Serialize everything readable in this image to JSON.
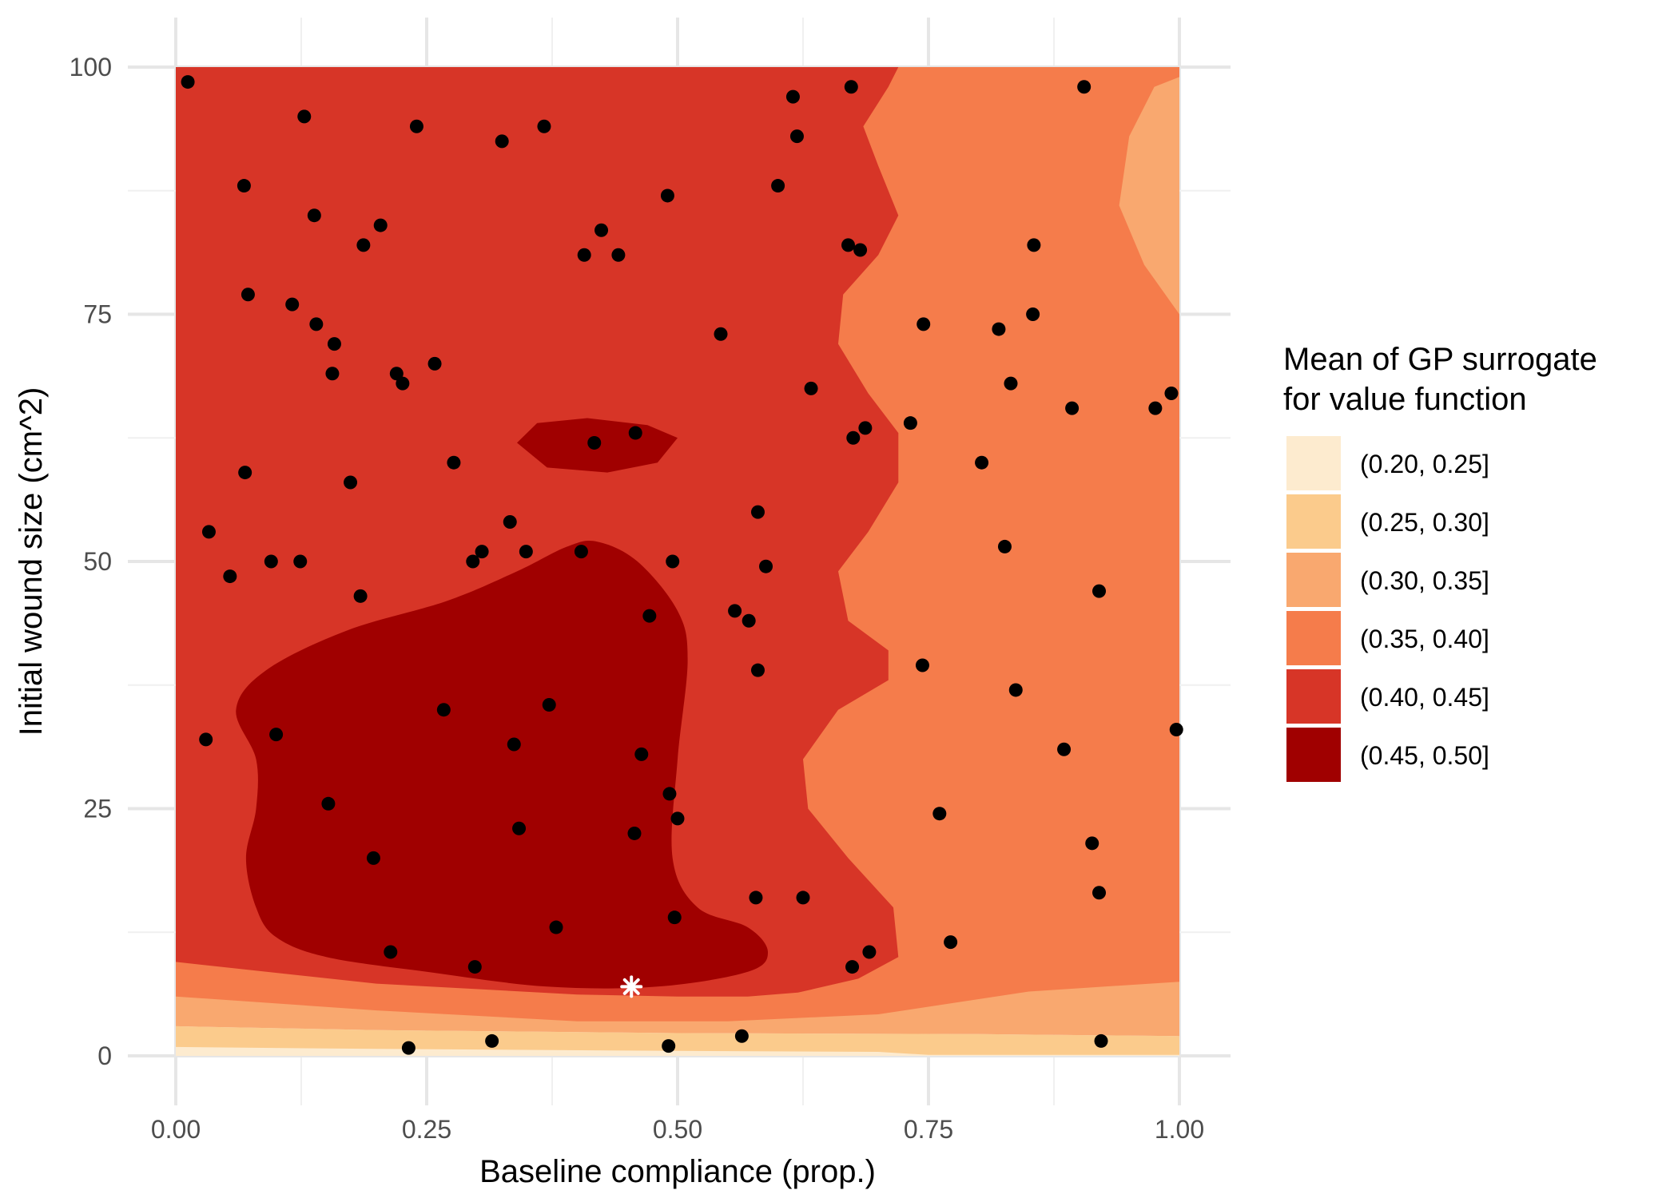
{
  "chart_data": {
    "type": "contour",
    "title": "",
    "xlabel": "Baseline compliance (prop.)",
    "ylabel": "Initial wound size (cm^2)",
    "xlim": [
      0,
      1
    ],
    "ylim": [
      0,
      100
    ],
    "x_ticks": [
      "0.00",
      "0.25",
      "0.50",
      "0.75",
      "1.00"
    ],
    "x_tick_values": [
      0,
      0.25,
      0.5,
      0.75,
      1
    ],
    "y_ticks": [
      "0",
      "25",
      "50",
      "75",
      "100"
    ],
    "y_tick_values": [
      0,
      25,
      50,
      75,
      100
    ],
    "grid": true,
    "legend": {
      "title_lines": [
        "Mean of GP surrogate",
        "for value function"
      ],
      "placement": "right",
      "bins": [
        {
          "label": "(0.20, 0.25]",
          "color": "#fdebcf"
        },
        {
          "label": "(0.25, 0.30]",
          "color": "#fbcb8c"
        },
        {
          "label": "(0.30, 0.35]",
          "color": "#f9a86f"
        },
        {
          "label": "(0.35, 0.40]",
          "color": "#f57c4b"
        },
        {
          "label": "(0.40, 0.45]",
          "color": "#d73527"
        },
        {
          "label": "(0.45, 0.50]",
          "color": "#a00000"
        }
      ]
    },
    "regions": [
      {
        "bin": "(0.25, 0.30]",
        "points": [
          [
            0,
            3
          ],
          [
            0.2,
            2.6
          ],
          [
            0.5,
            2.3
          ],
          [
            0.8,
            2.2
          ],
          [
            1,
            2
          ],
          [
            1,
            0
          ],
          [
            0,
            0
          ]
        ]
      },
      {
        "bin": "(0.20, 0.25]",
        "points": [
          [
            0,
            0.9
          ],
          [
            0.2,
            0.7
          ],
          [
            0.5,
            0.5
          ],
          [
            0.7,
            0.4
          ],
          [
            0.75,
            0.1
          ],
          [
            1,
            0.1
          ],
          [
            1,
            0
          ],
          [
            0,
            0
          ]
        ]
      },
      {
        "bin": "(0.30, 0.35]",
        "points": [
          [
            0,
            3
          ],
          [
            0.2,
            2.6
          ],
          [
            0.5,
            2.3
          ],
          [
            0.8,
            2.2
          ],
          [
            1,
            2
          ],
          [
            1,
            99
          ],
          [
            0.96,
            95
          ],
          [
            0.94,
            89
          ],
          [
            0.95,
            85
          ],
          [
            1,
            76
          ],
          [
            1,
            100
          ],
          [
            0,
            100
          ]
        ]
      },
      {
        "bin": "(0.35, 0.40]",
        "points": [
          [
            0,
            6
          ],
          [
            0.2,
            4.6
          ],
          [
            0.4,
            3.5
          ],
          [
            0.55,
            3.5
          ],
          [
            0.7,
            4.2
          ],
          [
            0.85,
            6.5
          ],
          [
            1,
            7.5
          ],
          [
            1,
            75
          ],
          [
            0.965,
            80
          ],
          [
            0.94,
            86
          ],
          [
            0.95,
            93
          ],
          [
            0.975,
            98
          ],
          [
            1,
            99
          ],
          [
            1,
            100
          ],
          [
            0,
            100
          ]
        ]
      },
      {
        "bin": "(0.40, 0.45]",
        "points": [
          [
            0,
            9.5
          ],
          [
            0.2,
            7.3
          ],
          [
            0.4,
            6.2
          ],
          [
            0.5,
            6.0
          ],
          [
            0.57,
            6.0
          ],
          [
            0.62,
            6.4
          ],
          [
            0.68,
            7.8
          ],
          [
            0.72,
            10
          ],
          [
            0.715,
            15
          ],
          [
            0.67,
            20
          ],
          [
            0.63,
            25
          ],
          [
            0.625,
            30
          ],
          [
            0.66,
            35
          ],
          [
            0.71,
            38
          ],
          [
            0.71,
            41
          ],
          [
            0.67,
            44
          ],
          [
            0.66,
            49
          ],
          [
            0.69,
            53
          ],
          [
            0.72,
            58
          ],
          [
            0.72,
            63
          ],
          [
            0.69,
            67
          ],
          [
            0.66,
            72
          ],
          [
            0.665,
            77
          ],
          [
            0.7,
            81
          ],
          [
            0.72,
            85
          ],
          [
            0.7,
            90
          ],
          [
            0.685,
            94
          ],
          [
            0.71,
            98
          ],
          [
            0.72,
            100
          ],
          [
            0,
            100
          ]
        ]
      },
      {
        "bin": "(0.45, 0.50]",
        "points": [
          [
            0.06,
            35
          ],
          [
            0.09,
            39
          ],
          [
            0.17,
            43
          ],
          [
            0.27,
            46
          ],
          [
            0.34,
            49
          ],
          [
            0.39,
            51.5
          ],
          [
            0.42,
            52
          ],
          [
            0.46,
            50
          ],
          [
            0.5,
            45
          ],
          [
            0.51,
            40
          ],
          [
            0.5,
            30
          ],
          [
            0.495,
            20
          ],
          [
            0.52,
            15
          ],
          [
            0.57,
            13
          ],
          [
            0.59,
            10.5
          ],
          [
            0.57,
            8.5
          ],
          [
            0.48,
            7
          ],
          [
            0.37,
            7
          ],
          [
            0.25,
            8.5
          ],
          [
            0.15,
            10
          ],
          [
            0.1,
            12
          ],
          [
            0.08,
            15
          ],
          [
            0.07,
            20
          ],
          [
            0.08,
            25
          ],
          [
            0.08,
            30
          ]
        ]
      },
      {
        "bin": "(0.45, 0.50]",
        "points": [
          [
            0.34,
            62
          ],
          [
            0.36,
            64
          ],
          [
            0.41,
            64.5
          ],
          [
            0.47,
            63.8
          ],
          [
            0.5,
            62.5
          ],
          [
            0.48,
            60
          ],
          [
            0.43,
            59
          ],
          [
            0.37,
            59.5
          ]
        ]
      }
    ],
    "points": [
      [
        0.012,
        98.5
      ],
      [
        0.128,
        95
      ],
      [
        0.068,
        88
      ],
      [
        0.072,
        77
      ],
      [
        0.116,
        76
      ],
      [
        0.14,
        74
      ],
      [
        0.158,
        72
      ],
      [
        0.156,
        69
      ],
      [
        0.069,
        59
      ],
      [
        0.033,
        53
      ],
      [
        0.054,
        48.5
      ],
      [
        0.095,
        50
      ],
      [
        0.124,
        50
      ],
      [
        0.174,
        58
      ],
      [
        0.184,
        46.5
      ],
      [
        0.138,
        85
      ],
      [
        0.187,
        82
      ],
      [
        0.204,
        84
      ],
      [
        0.24,
        94
      ],
      [
        0.22,
        69
      ],
      [
        0.226,
        68
      ],
      [
        0.258,
        70
      ],
      [
        0.277,
        60
      ],
      [
        0.296,
        50
      ],
      [
        0.305,
        51
      ],
      [
        0.325,
        92.5
      ],
      [
        0.333,
        54
      ],
      [
        0.349,
        51
      ],
      [
        0.367,
        94
      ],
      [
        0.404,
        51
      ],
      [
        0.407,
        81
      ],
      [
        0.424,
        83.5
      ],
      [
        0.441,
        81
      ],
      [
        0.417,
        62
      ],
      [
        0.458,
        63
      ],
      [
        0.49,
        87
      ],
      [
        0.495,
        50
      ],
      [
        0.472,
        44.5
      ],
      [
        0.543,
        73
      ],
      [
        0.557,
        45
      ],
      [
        0.571,
        44
      ],
      [
        0.58,
        39
      ],
      [
        0.58,
        55
      ],
      [
        0.588,
        49.5
      ],
      [
        0.6,
        88
      ],
      [
        0.615,
        97
      ],
      [
        0.619,
        93
      ],
      [
        0.633,
        67.5
      ],
      [
        0.67,
        82
      ],
      [
        0.675,
        62.5
      ],
      [
        0.682,
        81.5
      ],
      [
        0.687,
        63.5
      ],
      [
        0.673,
        98
      ],
      [
        0.732,
        64
      ],
      [
        0.744,
        39.5
      ],
      [
        0.745,
        74
      ],
      [
        0.761,
        24.5
      ],
      [
        0.772,
        11.5
      ],
      [
        0.803,
        60
      ],
      [
        0.82,
        73.5
      ],
      [
        0.826,
        51.5
      ],
      [
        0.832,
        68
      ],
      [
        0.837,
        37
      ],
      [
        0.854,
        75
      ],
      [
        0.855,
        82
      ],
      [
        0.885,
        31
      ],
      [
        0.893,
        65.5
      ],
      [
        0.905,
        98
      ],
      [
        0.913,
        21.5
      ],
      [
        0.92,
        16.5
      ],
      [
        0.92,
        47
      ],
      [
        0.976,
        65.5
      ],
      [
        0.992,
        67
      ],
      [
        0.997,
        33
      ],
      [
        0.03,
        32
      ],
      [
        0.1,
        32.5
      ],
      [
        0.152,
        25.5
      ],
      [
        0.197,
        20
      ],
      [
        0.214,
        10.5
      ],
      [
        0.267,
        35
      ],
      [
        0.298,
        9
      ],
      [
        0.337,
        31.5
      ],
      [
        0.342,
        23
      ],
      [
        0.372,
        35.5
      ],
      [
        0.379,
        13
      ],
      [
        0.464,
        30.5
      ],
      [
        0.457,
        22.5
      ],
      [
        0.492,
        26.5
      ],
      [
        0.497,
        14
      ],
      [
        0.5,
        24
      ],
      [
        0.578,
        16
      ],
      [
        0.625,
        16
      ],
      [
        0.674,
        9
      ],
      [
        0.691,
        10.5
      ],
      [
        0.232,
        0.8
      ],
      [
        0.315,
        1.5
      ],
      [
        0.491,
        1
      ],
      [
        0.564,
        2
      ],
      [
        0.922,
        1.5
      ]
    ],
    "highlight_point": {
      "x": 0.454,
      "y": 7,
      "marker": "asterisk",
      "color": "#ffffff"
    }
  }
}
